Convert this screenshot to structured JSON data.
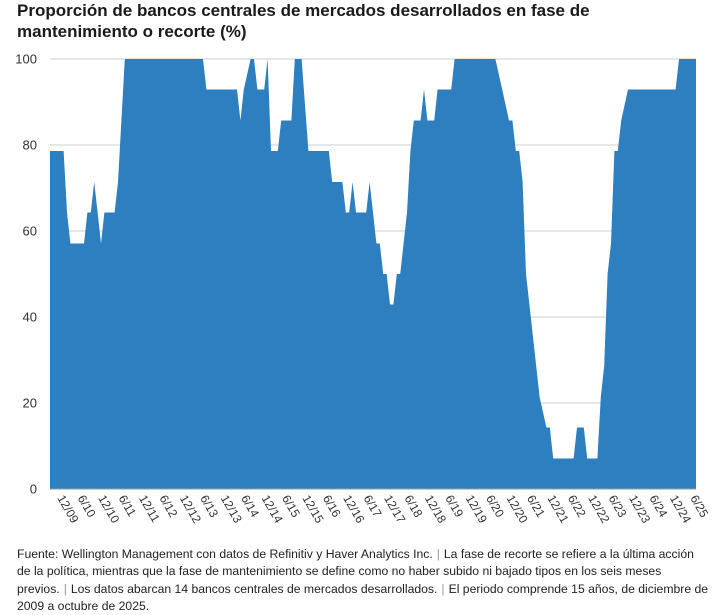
{
  "title": "Proporción de bancos centrales de mercados desarrollados en fase de mantenimiento o recorte (%)",
  "footnote": [
    "Fuente: Wellington Management con datos de Refinitiv y Haver Analytics Inc.",
    "La fase de recorte se refiere a la última acción de la política, mientras que la fase de mantenimiento se define como no haber subido ni bajado tipos en los seis meses previos.",
    "Los datos abarcan 14 bancos centrales de mercados desarrollados.",
    "El periodo comprende 15 años, de diciembre de 2009 a octubre de 2025."
  ],
  "chart_data": {
    "type": "area",
    "color": "#2e7fbf",
    "grid": true,
    "ylim": [
      0,
      100
    ],
    "yticks": [
      0,
      20,
      40,
      60,
      80,
      100
    ],
    "xlabels": [
      "12/09",
      "6/10",
      "12/10",
      "6/11",
      "12/11",
      "6/12",
      "12/12",
      "6/13",
      "12/13",
      "6/14",
      "12/14",
      "6/15",
      "12/15",
      "6/16",
      "12/16",
      "6/17",
      "12/17",
      "6/18",
      "12/18",
      "6/19",
      "12/19",
      "6/20",
      "12/20",
      "6/21",
      "12/21",
      "6/22",
      "12/22",
      "6/23",
      "12/23",
      "6/24",
      "12/24",
      "6/25"
    ],
    "xrange": [
      "2009-12",
      "2025-10"
    ],
    "points": [
      [
        "2009-12",
        78.6
      ],
      [
        "2010-04",
        78.6
      ],
      [
        "2010-05",
        64.3
      ],
      [
        "2010-06",
        57.1
      ],
      [
        "2010-10",
        57.1
      ],
      [
        "2010-11",
        64.3
      ],
      [
        "2010-12",
        64.3
      ],
      [
        "2011-01",
        71.4
      ],
      [
        "2011-02",
        64.3
      ],
      [
        "2011-03",
        57.1
      ],
      [
        "2011-04",
        64.3
      ],
      [
        "2011-07",
        64.3
      ],
      [
        "2011-08",
        71.4
      ],
      [
        "2011-09",
        85.7
      ],
      [
        "2011-10",
        100
      ],
      [
        "2013-09",
        100
      ],
      [
        "2013-10",
        92.9
      ],
      [
        "2014-07",
        92.9
      ],
      [
        "2014-08",
        85.7
      ],
      [
        "2014-09",
        92.9
      ],
      [
        "2014-11",
        100
      ],
      [
        "2014-12",
        100
      ],
      [
        "2015-01",
        92.9
      ],
      [
        "2015-03",
        92.9
      ],
      [
        "2015-04",
        100
      ],
      [
        "2015-05",
        78.6
      ],
      [
        "2015-07",
        78.6
      ],
      [
        "2015-08",
        85.7
      ],
      [
        "2015-11",
        85.7
      ],
      [
        "2015-12",
        100
      ],
      [
        "2016-02",
        100
      ],
      [
        "2016-04",
        78.6
      ],
      [
        "2016-10",
        78.6
      ],
      [
        "2016-11",
        71.4
      ],
      [
        "2017-02",
        71.4
      ],
      [
        "2017-03",
        64.3
      ],
      [
        "2017-04",
        64.3
      ],
      [
        "2017-05",
        71.4
      ],
      [
        "2017-06",
        64.3
      ],
      [
        "2017-09",
        64.3
      ],
      [
        "2017-10",
        71.4
      ],
      [
        "2017-11",
        64.3
      ],
      [
        "2017-12",
        57.1
      ],
      [
        "2018-01",
        57.1
      ],
      [
        "2018-02",
        50
      ],
      [
        "2018-03",
        50
      ],
      [
        "2018-04",
        42.9
      ],
      [
        "2018-05",
        42.9
      ],
      [
        "2018-06",
        50
      ],
      [
        "2018-07",
        50
      ],
      [
        "2018-08",
        57.1
      ],
      [
        "2018-09",
        64.3
      ],
      [
        "2018-10",
        78.6
      ],
      [
        "2018-11",
        85.7
      ],
      [
        "2019-01",
        85.7
      ],
      [
        "2019-02",
        92.9
      ],
      [
        "2019-03",
        85.7
      ],
      [
        "2019-05",
        85.7
      ],
      [
        "2019-06",
        92.9
      ],
      [
        "2019-10",
        92.9
      ],
      [
        "2019-11",
        100
      ],
      [
        "2020-11",
        100
      ],
      [
        "2021-01",
        92.9
      ],
      [
        "2021-03",
        85.7
      ],
      [
        "2021-04",
        85.7
      ],
      [
        "2021-05",
        78.6
      ],
      [
        "2021-06",
        78.6
      ],
      [
        "2021-07",
        71.4
      ],
      [
        "2021-08",
        50
      ],
      [
        "2021-09",
        42.9
      ],
      [
        "2021-11",
        28.6
      ],
      [
        "2021-12",
        21.4
      ],
      [
        "2022-02",
        14.3
      ],
      [
        "2022-03",
        14.3
      ],
      [
        "2022-04",
        7.1
      ],
      [
        "2022-10",
        7.1
      ],
      [
        "2022-11",
        14.3
      ],
      [
        "2023-01",
        14.3
      ],
      [
        "2023-02",
        7.1
      ],
      [
        "2023-05",
        7.1
      ],
      [
        "2023-06",
        21.4
      ],
      [
        "2023-07",
        28.6
      ],
      [
        "2023-08",
        50
      ],
      [
        "2023-09",
        57.1
      ],
      [
        "2023-10",
        78.6
      ],
      [
        "2023-11",
        78.6
      ],
      [
        "2023-12",
        85.7
      ],
      [
        "2024-02",
        92.9
      ],
      [
        "2025-04",
        92.9
      ],
      [
        "2025-05",
        100
      ],
      [
        "2025-10",
        100
      ]
    ]
  }
}
